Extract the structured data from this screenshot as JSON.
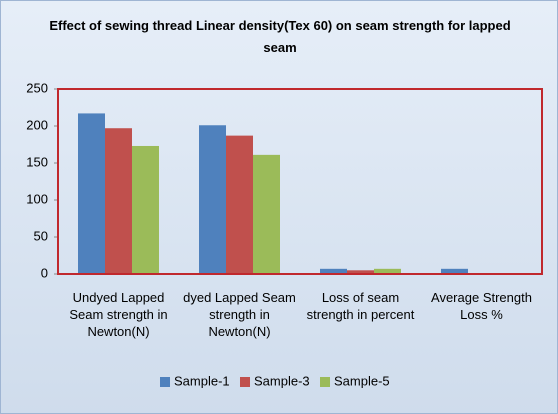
{
  "chart_data": {
    "type": "bar",
    "title": "Effect of sewing thread Linear density(Tex 60) on seam strength for lapped seam",
    "categories": [
      "Undyed Lapped Seam strength in Newton(N)",
      "dyed Lapped Seam strength in Newton(N)",
      "Loss of seam strength in percent",
      "Average Strength Loss %"
    ],
    "series": [
      {
        "name": "Sample-1",
        "color": "#4f81bd",
        "values": [
          217,
          201,
          7,
          7
        ]
      },
      {
        "name": "Sample-3",
        "color": "#c0504d",
        "values": [
          197,
          187,
          5,
          0
        ]
      },
      {
        "name": "Sample-5",
        "color": "#9bbb59",
        "values": [
          173,
          161,
          7,
          0
        ]
      }
    ],
    "ylim": [
      0,
      250
    ],
    "yticks": [
      0,
      50,
      100,
      150,
      200,
      250
    ]
  }
}
